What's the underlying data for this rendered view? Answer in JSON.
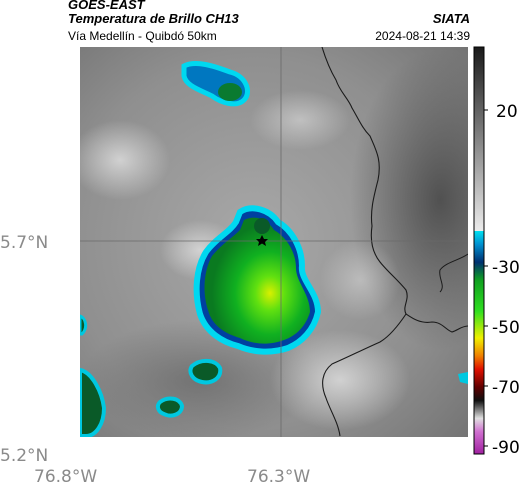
{
  "header": {
    "satellite": "GOES-EAST",
    "product": "Temperatura de Brillo CH13",
    "region": "Vía Medellín - Quibdó 50km",
    "agency": "SIATA",
    "datetime": "2024-08-21 14:39"
  },
  "map": {
    "lat_ticks": [
      "5.7°N",
      "5.2°N"
    ],
    "lon_ticks": [
      "76.8°W",
      "76.3°W"
    ],
    "gridlines": true,
    "marker": "star",
    "background_gray": "#8c8c8c"
  },
  "colorbar": {
    "labels": [
      "20",
      "-30",
      "-50",
      "-70",
      "-90"
    ],
    "colors": {
      "warm_top": "#202020",
      "warm_bottom": "#e8e8e8",
      "cyan": "#00c8e0",
      "green": "#10c020",
      "yellow": "#f0f000",
      "red": "#e01000",
      "magenta": "#c040c0"
    }
  }
}
